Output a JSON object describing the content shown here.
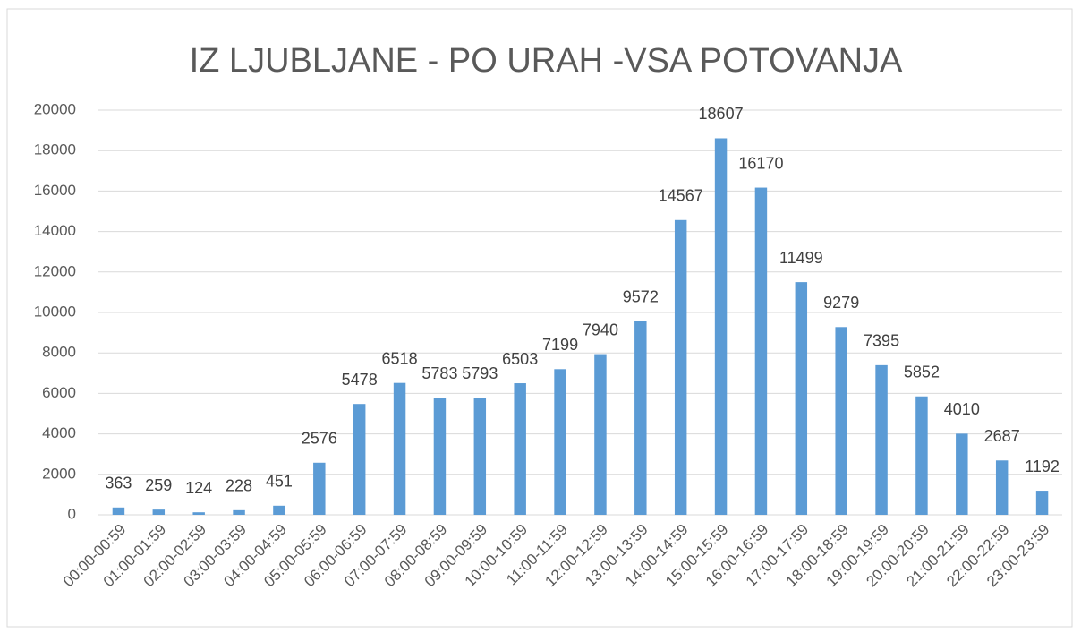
{
  "chart_data": {
    "type": "bar",
    "title": "IZ LJUBLJANE - PO URAH -VSA POTOVANJA",
    "categories": [
      "00:00-00:59",
      "01:00-01:59",
      "02:00-02:59",
      "03:00-03:59",
      "04:00-04:59",
      "05:00-05:59",
      "06:00-06:59",
      "07:00-07:59",
      "08:00-08:59",
      "09:00-09:59",
      "10:00-10:59",
      "11:00-11:59",
      "12:00-12:59",
      "13:00-13:59",
      "14:00-14:59",
      "15:00-15:59",
      "16:00-16:59",
      "17:00-17:59",
      "18:00-18:59",
      "19:00-19:59",
      "20:00-20:59",
      "21:00-21:59",
      "22:00-22:59",
      "23:00-23:59"
    ],
    "values": [
      363,
      259,
      124,
      228,
      451,
      2576,
      5478,
      6518,
      5783,
      5793,
      6503,
      7199,
      7940,
      9572,
      14567,
      18607,
      16170,
      11499,
      9279,
      7395,
      5852,
      4010,
      2687,
      1192
    ],
    "color": "#5b9bd5",
    "ylim": [
      0,
      20000
    ],
    "yticks": [
      0,
      2000,
      4000,
      6000,
      8000,
      10000,
      12000,
      14000,
      16000,
      18000,
      20000
    ],
    "grid": true
  }
}
